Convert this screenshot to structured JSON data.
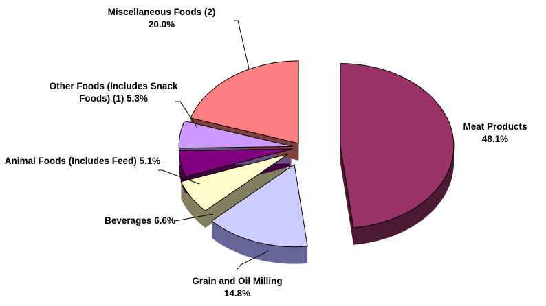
{
  "chart_data": {
    "type": "pie",
    "categories": [
      "Meat Products",
      "Grain and Oil Milling",
      "Beverages",
      "Animal Foods (Includes Feed)",
      "Other Foods (Includes Snack Foods) (1)",
      "Miscellaneous Foods (2)"
    ],
    "values": [
      48.1,
      14.8,
      6.6,
      5.1,
      5.3,
      20.0
    ],
    "value_labels": [
      "48.1%",
      "14.8%",
      "6.6%",
      "5.1%",
      "5.3%",
      "20.0%"
    ],
    "colors": [
      "#993366",
      "#ccccff",
      "#ffffcc",
      "#800080",
      "#cc99ff",
      "#ff8080"
    ]
  }
}
